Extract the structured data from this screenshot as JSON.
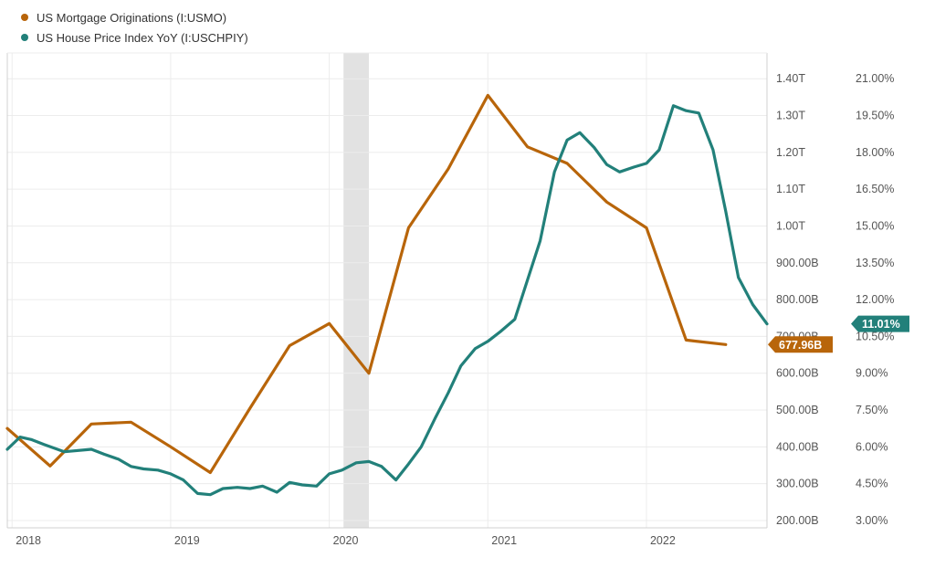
{
  "chart_data": {
    "type": "line",
    "title": "",
    "x_ticks": [
      "2018",
      "2019",
      "2020",
      "2021",
      "2022"
    ],
    "x_range": [
      2017.97,
      2022.76
    ],
    "shaded_band": [
      2020.09,
      2020.25
    ],
    "grid": true,
    "legend_position": "top-left",
    "series": [
      {
        "name": "US Mortgage Originations (I:USMO)",
        "color": "#b8650a",
        "axis": "left",
        "last_value_label": "677.96B",
        "points": [
          [
            2017.97,
            450
          ],
          [
            2018.24,
            348
          ],
          [
            2018.5,
            462
          ],
          [
            2018.75,
            467
          ],
          [
            2019.0,
            400
          ],
          [
            2019.25,
            330
          ],
          [
            2019.5,
            505
          ],
          [
            2019.75,
            675
          ],
          [
            2020.0,
            735
          ],
          [
            2020.25,
            600
          ],
          [
            2020.5,
            995
          ],
          [
            2020.75,
            1155
          ],
          [
            2021.0,
            1355
          ],
          [
            2021.25,
            1215
          ],
          [
            2021.5,
            1170
          ],
          [
            2021.75,
            1065
          ],
          [
            2022.0,
            995
          ],
          [
            2022.25,
            690
          ],
          [
            2022.5,
            678
          ]
        ]
      },
      {
        "name": "US House Price Index YoY (I:USCHPIY)",
        "color": "#22807a",
        "axis": "right",
        "last_value_label": "11.01%",
        "points": [
          [
            2017.97,
            5.9
          ],
          [
            2018.05,
            6.4
          ],
          [
            2018.12,
            6.3
          ],
          [
            2018.2,
            6.1
          ],
          [
            2018.33,
            5.8
          ],
          [
            2018.5,
            5.9
          ],
          [
            2018.58,
            5.7
          ],
          [
            2018.67,
            5.5
          ],
          [
            2018.75,
            5.2
          ],
          [
            2018.83,
            5.1
          ],
          [
            2018.92,
            5.05
          ],
          [
            2019.0,
            4.9
          ],
          [
            2019.08,
            4.65
          ],
          [
            2019.17,
            4.1
          ],
          [
            2019.25,
            4.05
          ],
          [
            2019.33,
            4.3
          ],
          [
            2019.42,
            4.35
          ],
          [
            2019.5,
            4.3
          ],
          [
            2019.58,
            4.4
          ],
          [
            2019.67,
            4.15
          ],
          [
            2019.75,
            4.55
          ],
          [
            2019.83,
            4.45
          ],
          [
            2019.92,
            4.4
          ],
          [
            2020.0,
            4.9
          ],
          [
            2020.08,
            5.05
          ],
          [
            2020.17,
            5.35
          ],
          [
            2020.25,
            5.4
          ],
          [
            2020.33,
            5.2
          ],
          [
            2020.42,
            4.65
          ],
          [
            2020.5,
            5.3
          ],
          [
            2020.58,
            6.0
          ],
          [
            2020.67,
            7.2
          ],
          [
            2020.75,
            8.2
          ],
          [
            2020.83,
            9.3
          ],
          [
            2020.92,
            10.0
          ],
          [
            2021.0,
            10.3
          ],
          [
            2021.08,
            10.7
          ],
          [
            2021.17,
            11.2
          ],
          [
            2021.25,
            12.8
          ],
          [
            2021.33,
            14.4
          ],
          [
            2021.42,
            17.2
          ],
          [
            2021.5,
            18.5
          ],
          [
            2021.58,
            18.8
          ],
          [
            2021.67,
            18.2
          ],
          [
            2021.75,
            17.5
          ],
          [
            2021.83,
            17.2
          ],
          [
            2021.92,
            17.4
          ],
          [
            2022.0,
            17.55
          ],
          [
            2022.08,
            18.1
          ],
          [
            2022.17,
            19.9
          ],
          [
            2022.25,
            19.7
          ],
          [
            2022.33,
            19.6
          ],
          [
            2022.42,
            18.1
          ],
          [
            2022.5,
            15.6
          ],
          [
            2022.58,
            12.9
          ],
          [
            2022.67,
            11.8
          ],
          [
            2022.76,
            11.01
          ]
        ]
      }
    ],
    "left_axis": {
      "ylim": [
        180,
        1470
      ],
      "ticks": [
        200,
        300,
        400,
        500,
        600,
        700,
        800,
        900,
        1000,
        1100,
        1200,
        1300,
        1400
      ],
      "tick_labels": [
        "200.00B",
        "300.00B",
        "400.00B",
        "500.00B",
        "600.00B",
        "700.00B",
        "800.00B",
        "900.00B",
        "1.00T",
        "1.10T",
        "1.20T",
        "1.30T",
        "1.40T"
      ]
    },
    "right_axis": {
      "ylim": [
        2.7,
        22.05
      ],
      "ticks": [
        3,
        4.5,
        6,
        7.5,
        9,
        10.5,
        12,
        13.5,
        15,
        16.5,
        18,
        19.5,
        21
      ],
      "tick_labels": [
        "3.00%",
        "4.50%",
        "6.00%",
        "7.50%",
        "9.00%",
        "10.50%",
        "12.00%",
        "13.50%",
        "15.00%",
        "16.50%",
        "18.00%",
        "19.50%",
        "21.00%"
      ]
    }
  }
}
